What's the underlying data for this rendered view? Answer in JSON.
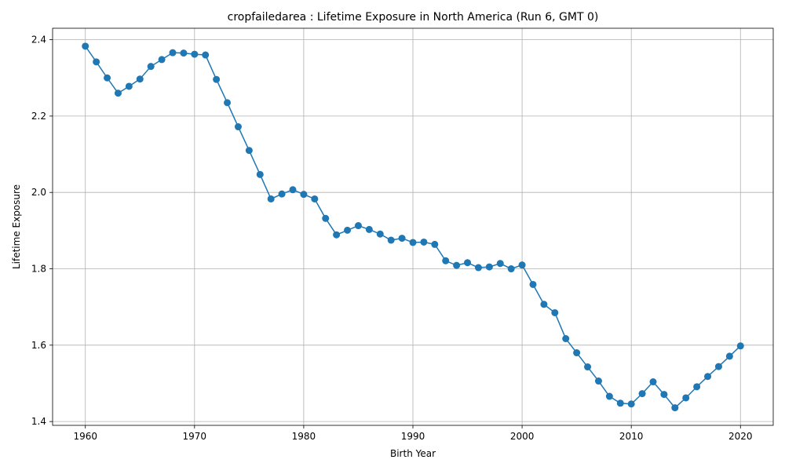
{
  "chart_data": {
    "type": "line",
    "title": "cropfailedarea : Lifetime Exposure in North America (Run 6, GMT 0)",
    "xlabel": "Birth Year",
    "ylabel": "Lifetime Exposure",
    "xlim": [
      1957,
      2023
    ],
    "ylim": [
      1.39,
      2.43
    ],
    "xticks": [
      1960,
      1970,
      1980,
      1990,
      2000,
      2010,
      2020
    ],
    "yticks": [
      1.4,
      1.6,
      1.8,
      2.0,
      2.2,
      2.4
    ],
    "ytick_labels": [
      "1.4",
      "1.6",
      "1.8",
      "2.0",
      "2.2",
      "2.4"
    ],
    "grid": true,
    "marker": "circle",
    "color": "#1f77b4",
    "series": [
      {
        "x": [
          1960,
          1961,
          1962,
          1963,
          1964,
          1965,
          1966,
          1967,
          1968,
          1969,
          1970,
          1971,
          1972,
          1973,
          1974,
          1975,
          1976,
          1977,
          1978,
          1979,
          1980,
          1981,
          1982,
          1983,
          1984,
          1985,
          1986,
          1987,
          1988,
          1989,
          1990,
          1991,
          1992,
          1993,
          1994,
          1995,
          1996,
          1997,
          1998,
          1999,
          2000,
          2001,
          2002,
          2003,
          2004,
          2005,
          2006,
          2007,
          2008,
          2009,
          2010,
          2011,
          2012,
          2013,
          2014,
          2015,
          2016,
          2017,
          2018,
          2019,
          2020
        ],
        "values": [
          2.383,
          2.342,
          2.3,
          2.26,
          2.278,
          2.297,
          2.33,
          2.348,
          2.366,
          2.365,
          2.362,
          2.36,
          2.296,
          2.235,
          2.172,
          2.11,
          2.047,
          1.983,
          1.996,
          2.007,
          1.995,
          1.983,
          1.932,
          1.889,
          1.901,
          1.913,
          1.903,
          1.891,
          1.875,
          1.88,
          1.869,
          1.87,
          1.864,
          1.821,
          1.809,
          1.816,
          1.803,
          1.805,
          1.814,
          1.8,
          1.81,
          1.759,
          1.707,
          1.685,
          1.617,
          1.58,
          1.543,
          1.506,
          1.466,
          1.448,
          1.446,
          1.473,
          1.504,
          1.471,
          1.436,
          1.462,
          1.491,
          1.518,
          1.544,
          1.571,
          1.598
        ]
      }
    ]
  }
}
